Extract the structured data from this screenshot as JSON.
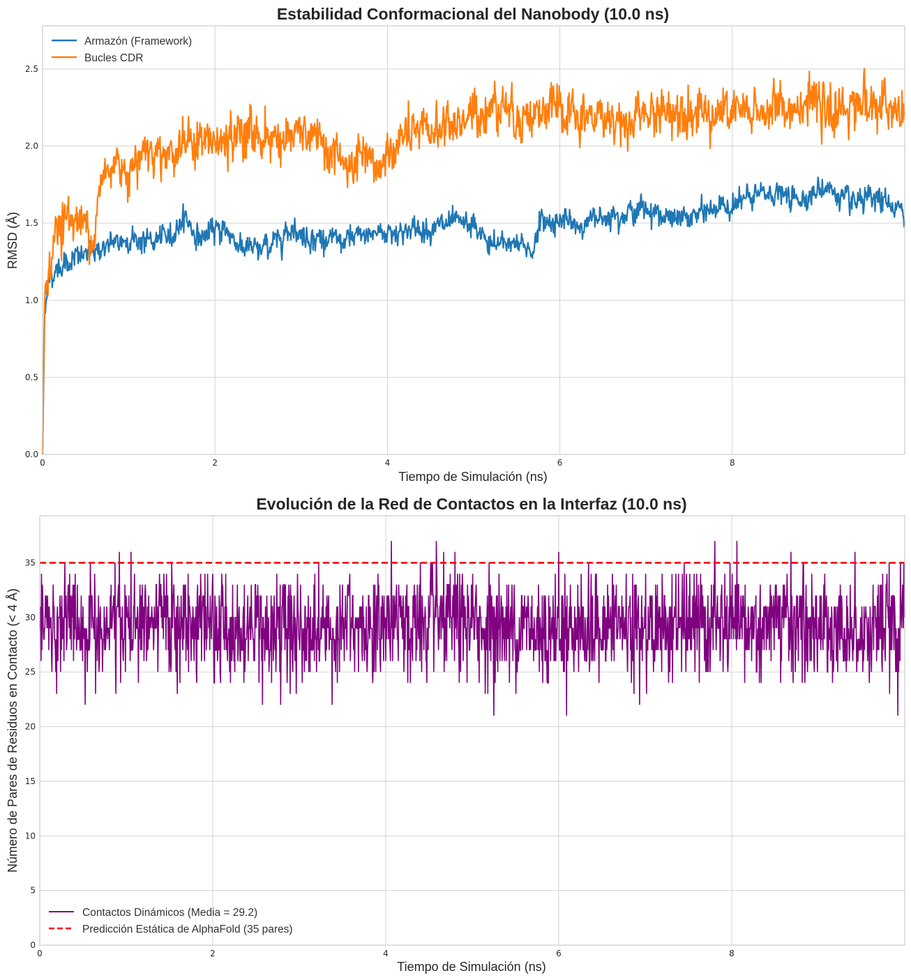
{
  "chart_data": [
    {
      "type": "line",
      "title": "Estabilidad Conformacional del Nanobody (10.0 ns)",
      "xlabel": "Tiempo de Simulación (ns)",
      "ylabel": "RMSD (Å)",
      "xlim": [
        0,
        10
      ],
      "ylim": [
        0,
        2.78
      ],
      "xticks": [
        "0",
        "2",
        "4",
        "6",
        "8"
      ],
      "yticks": [
        "0.0",
        "0.5",
        "1.0",
        "1.5",
        "2.0",
        "2.5"
      ],
      "grid": true,
      "legend_position": "upper-left",
      "series": [
        {
          "name": "Armazón (Framework)",
          "color": "#1f77b4",
          "x": [
            0,
            0.05,
            0.15,
            0.3,
            0.5,
            0.75,
            1.0,
            1.25,
            1.5,
            1.65,
            1.8,
            2.0,
            2.1,
            2.3,
            2.5,
            2.7,
            2.9,
            3.0,
            3.2,
            3.5,
            3.7,
            3.9,
            4.2,
            4.5,
            4.8,
            5.0,
            5.2,
            5.4,
            5.6,
            5.7,
            5.75,
            6.0,
            6.2,
            6.5,
            6.8,
            7.0,
            7.3,
            7.6,
            7.8,
            8.0,
            8.3,
            8.5,
            8.7,
            9.0,
            9.1,
            9.2,
            9.4,
            9.6,
            9.8,
            10.0
          ],
          "y": [
            0.75,
            1.1,
            1.2,
            1.25,
            1.3,
            1.35,
            1.4,
            1.38,
            1.42,
            1.55,
            1.4,
            1.45,
            1.47,
            1.35,
            1.32,
            1.38,
            1.48,
            1.42,
            1.4,
            1.38,
            1.42,
            1.44,
            1.45,
            1.47,
            1.5,
            1.48,
            1.35,
            1.38,
            1.35,
            1.32,
            1.5,
            1.52,
            1.48,
            1.55,
            1.57,
            1.6,
            1.52,
            1.55,
            1.6,
            1.62,
            1.68,
            1.7,
            1.65,
            1.7,
            1.75,
            1.68,
            1.62,
            1.65,
            1.63,
            1.55
          ]
        },
        {
          "name": "Bucles CDR",
          "color": "#ff7f0e",
          "x": [
            0,
            0.05,
            0.15,
            0.3,
            0.45,
            0.6,
            0.7,
            0.85,
            1.0,
            1.2,
            1.4,
            1.6,
            1.8,
            2.0,
            2.2,
            2.4,
            2.6,
            2.8,
            3.0,
            3.2,
            3.4,
            3.5,
            3.7,
            3.9,
            4.0,
            4.2,
            4.5,
            4.8,
            5.0,
            5.2,
            5.3,
            5.5,
            5.7,
            6.0,
            6.2,
            6.4,
            6.6,
            6.8,
            7.0,
            7.2,
            7.5,
            7.8,
            8.0,
            8.2,
            8.5,
            8.7,
            8.9,
            9.1,
            9.3,
            9.5,
            9.7,
            10.0
          ],
          "y": [
            0.85,
            1.15,
            1.45,
            1.55,
            1.5,
            1.45,
            1.8,
            1.9,
            1.85,
            2.0,
            1.95,
            2.0,
            2.05,
            2.0,
            2.05,
            2.1,
            2.05,
            2.05,
            2.08,
            2.02,
            1.95,
            1.85,
            1.9,
            1.85,
            1.95,
            2.05,
            2.1,
            2.15,
            2.2,
            2.25,
            2.3,
            2.2,
            2.2,
            2.25,
            2.15,
            2.2,
            2.18,
            2.15,
            2.2,
            2.22,
            2.25,
            2.2,
            2.22,
            2.2,
            2.25,
            2.25,
            2.3,
            2.2,
            2.25,
            2.3,
            2.25,
            2.2
          ]
        }
      ]
    },
    {
      "type": "line",
      "title": "Evolución de la Red de Contactos en la Interfaz (10.0 ns)",
      "xlabel": "Tiempo de Simulación (ns)",
      "ylabel": "Número de Pares de Residuos en Contacto (< 4 Å)",
      "xlim": [
        0,
        10
      ],
      "ylim": [
        0,
        39.3
      ],
      "xticks": [
        "0",
        "2",
        "4",
        "6",
        "8"
      ],
      "yticks": [
        "0",
        "5",
        "10",
        "15",
        "20",
        "25",
        "30",
        "35"
      ],
      "grid": true,
      "legend_position": "lower-left",
      "series": [
        {
          "name": "Contactos Dinámicos (Media = 29.2)",
          "color": "#800080",
          "mean": 29.2,
          "min": 21,
          "max": 38
        },
        {
          "name": "Predicción Estática de AlphaFold (35 pares)",
          "color": "#ff0000",
          "style": "dashed",
          "y_constant": 35
        }
      ]
    }
  ]
}
